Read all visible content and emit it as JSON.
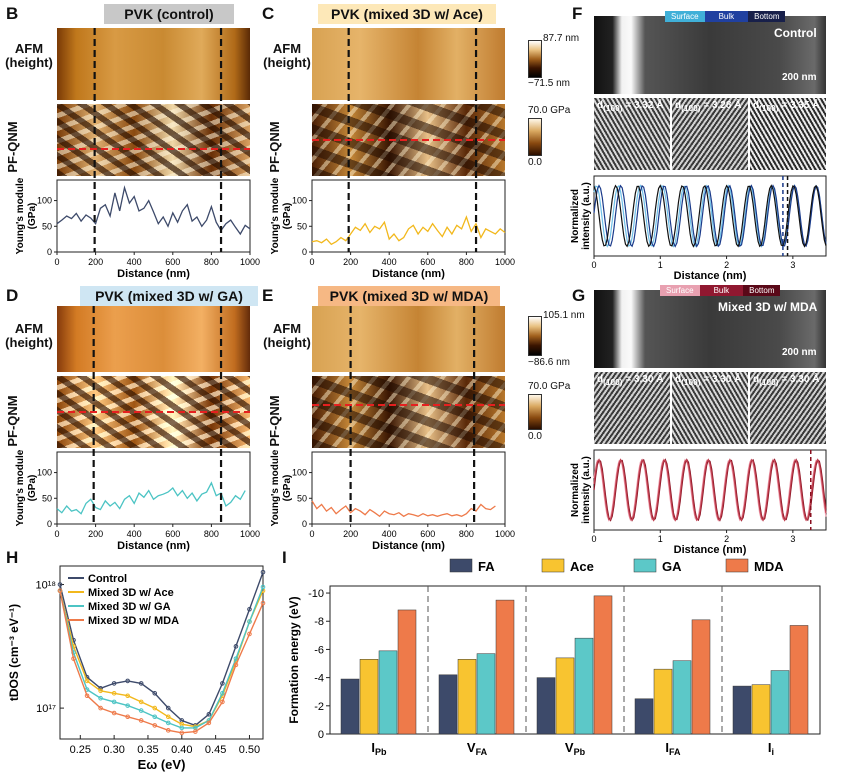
{
  "panels": {
    "B": {
      "letter": "B",
      "title": "PVK (control)",
      "title_bg": "#c8c8c8"
    },
    "C": {
      "letter": "C",
      "title": "PVK (mixed 3D w/ Ace)",
      "title_bg": "#fde8b8"
    },
    "D": {
      "letter": "D",
      "title": "PVK (mixed 3D w/ GA)",
      "title_bg": "#cfe6f3"
    },
    "E": {
      "letter": "E",
      "title": "PVK (mixed 3D w/ MDA)",
      "title_bg": "#f6b884"
    },
    "F": {
      "letter": "F",
      "tag": "Control",
      "scale": "200 nm"
    },
    "G": {
      "letter": "G",
      "tag": "Mixed 3D w/ MDA",
      "scale": "200 nm"
    },
    "H": {
      "letter": "H"
    },
    "I": {
      "letter": "I"
    }
  },
  "row_labels": {
    "afm_1": "AFM",
    "afm_2": "(height)",
    "pfqnm": "PF-QNM",
    "ym_1": "Young's module",
    "ym_2": "(GPa)"
  },
  "colorbars": {
    "afm_top": {
      "max": "87.7 nm",
      "min": "−71.5 nm"
    },
    "pf_top": {
      "max": "70.0 GPa",
      "min": "0.0"
    },
    "afm_bot": {
      "max": "105.1 nm",
      "min": "−86.6 nm"
    },
    "pf_bot": {
      "max": "70.0 GPa",
      "min": "0.0"
    }
  },
  "regions_F": [
    "Surface",
    "Bulk",
    "Bottom"
  ],
  "regions_G": [
    "Surface",
    "Bulk",
    "Bottom"
  ],
  "dspacing_F": [
    "3.32 Å",
    "3.28 Å",
    "3.35 Å"
  ],
  "dspacing_G": [
    "3.30 Å",
    "3.30 Å",
    "3.30 Å"
  ],
  "d_prefix": "d",
  "d_sub": "(100)",
  "d_eq": " = ",
  "colors": {
    "B": "#3d4a6a",
    "C": "#f2b81c",
    "D": "#4cc4c4",
    "E": "#ee7a4a",
    "red_dash": "#e52020",
    "F1": "#6ec0e8",
    "F2": "#1a3a8a",
    "F3": "#111111",
    "G1": "#f0a0b0",
    "G2": "#8a1020",
    "G3": "#c04050"
  },
  "chart_data": [
    {
      "type": "line",
      "panel": "B",
      "xlabel": "Distance (nm)",
      "ylabel": "Young's module (GPa)",
      "xlim": [
        0,
        1000
      ],
      "ylim": [
        0,
        140
      ],
      "x_ticks": [
        0,
        200,
        400,
        600,
        800,
        1000
      ],
      "y_ticks": [
        0,
        50,
        100
      ],
      "dashed_x": [
        195,
        850
      ],
      "series": [
        {
          "name": "control",
          "x": [
            0,
            25,
            50,
            75,
            100,
            125,
            150,
            175,
            200,
            225,
            250,
            275,
            300,
            325,
            350,
            375,
            400,
            425,
            450,
            475,
            500,
            525,
            550,
            575,
            600,
            625,
            650,
            675,
            700,
            725,
            750,
            775,
            800,
            825,
            850,
            875,
            900,
            925,
            950,
            975,
            1000
          ],
          "y": [
            55,
            62,
            70,
            65,
            75,
            60,
            72,
            66,
            55,
            85,
            92,
            70,
            115,
            80,
            125,
            95,
            108,
            80,
            85,
            100,
            78,
            55,
            68,
            50,
            76,
            58,
            80,
            92,
            60,
            68,
            50,
            62,
            88,
            58,
            42,
            55,
            62,
            48,
            35,
            52,
            45
          ]
        }
      ]
    },
    {
      "type": "line",
      "panel": "C",
      "xlabel": "Distance (nm)",
      "ylabel": "Young's module (GPa)",
      "xlim": [
        0,
        1000
      ],
      "ylim": [
        0,
        140
      ],
      "x_ticks": [
        0,
        200,
        400,
        600,
        800,
        1000
      ],
      "y_ticks": [
        0,
        50,
        100
      ],
      "dashed_x": [
        190,
        850
      ],
      "series": [
        {
          "name": "Ace",
          "x": [
            0,
            25,
            50,
            75,
            100,
            125,
            150,
            175,
            200,
            225,
            250,
            275,
            300,
            325,
            350,
            375,
            400,
            425,
            450,
            475,
            500,
            525,
            550,
            575,
            600,
            625,
            650,
            675,
            700,
            725,
            750,
            775,
            800,
            825,
            850,
            875,
            900,
            925,
            950,
            975,
            1000
          ],
          "y": [
            20,
            22,
            18,
            25,
            15,
            20,
            28,
            22,
            35,
            48,
            42,
            55,
            38,
            50,
            45,
            58,
            25,
            35,
            22,
            28,
            45,
            52,
            35,
            48,
            40,
            55,
            42,
            30,
            48,
            35,
            52,
            45,
            68,
            40,
            55,
            28,
            45,
            40,
            35,
            45,
            38
          ]
        }
      ]
    },
    {
      "type": "line",
      "panel": "D",
      "xlabel": "Distance (nm)",
      "ylabel": "Young's module (GPa)",
      "xlim": [
        0,
        1000
      ],
      "ylim": [
        0,
        140
      ],
      "x_ticks": [
        0,
        200,
        400,
        600,
        800,
        1000
      ],
      "y_ticks": [
        0,
        50,
        100
      ],
      "dashed_x": [
        190,
        850
      ],
      "series": [
        {
          "name": "GA",
          "x": [
            0,
            25,
            50,
            75,
            100,
            125,
            150,
            175,
            200,
            225,
            250,
            275,
            300,
            325,
            350,
            375,
            400,
            425,
            450,
            475,
            500,
            525,
            550,
            575,
            600,
            625,
            650,
            675,
            700,
            725,
            750,
            775,
            800,
            825,
            850,
            875,
            900,
            925,
            950,
            975
          ],
          "y": [
            30,
            22,
            35,
            25,
            28,
            20,
            40,
            48,
            32,
            28,
            45,
            35,
            42,
            30,
            48,
            55,
            40,
            60,
            52,
            65,
            48,
            55,
            58,
            62,
            70,
            55,
            65,
            50,
            60,
            45,
            58,
            62,
            80,
            55,
            60,
            35,
            42,
            55,
            48,
            65
          ]
        }
      ]
    },
    {
      "type": "line",
      "panel": "E",
      "xlabel": "Distance (nm)",
      "ylabel": "Young's module (GPa)",
      "xlim": [
        0,
        1000
      ],
      "ylim": [
        0,
        140
      ],
      "x_ticks": [
        0,
        200,
        400,
        600,
        800,
        1000
      ],
      "y_ticks": [
        0,
        50,
        100
      ],
      "dashed_x": [
        200,
        840
      ],
      "series": [
        {
          "name": "MDA",
          "x": [
            0,
            25,
            50,
            75,
            100,
            125,
            150,
            175,
            200,
            225,
            250,
            275,
            300,
            325,
            350,
            375,
            400,
            425,
            450,
            475,
            500,
            525,
            550,
            575,
            600,
            625,
            650,
            675,
            700,
            725,
            750,
            775,
            800,
            825,
            850,
            875,
            900,
            925,
            950
          ],
          "y": [
            45,
            30,
            38,
            25,
            32,
            20,
            28,
            35,
            22,
            30,
            25,
            18,
            28,
            22,
            15,
            25,
            20,
            18,
            22,
            15,
            20,
            18,
            15,
            20,
            16,
            18,
            15,
            18,
            20,
            16,
            18,
            15,
            20,
            30,
            25,
            38,
            30,
            28,
            35
          ]
        }
      ]
    },
    {
      "type": "line",
      "panel": "F",
      "xlabel": "Distance (nm)",
      "ylabel": "Normalized intensity (a.u.)",
      "xlim": [
        0,
        3.5
      ],
      "ylim": [
        0,
        1
      ],
      "x_ticks": [
        0,
        1,
        2,
        3
      ],
      "dashed_x": [
        2.85,
        2.92
      ],
      "series": [
        {
          "name": "Surface",
          "period": 0.332
        },
        {
          "name": "Bulk",
          "period": 0.328
        },
        {
          "name": "Bottom",
          "period": 0.335
        }
      ]
    },
    {
      "type": "line",
      "panel": "G",
      "xlabel": "Distance (nm)",
      "ylabel": "Normalized intensity (a.u.)",
      "xlim": [
        0,
        3.5
      ],
      "ylim": [
        0,
        1
      ],
      "x_ticks": [
        0,
        1,
        2,
        3
      ],
      "dashed_x": [
        3.27
      ],
      "series": [
        {
          "name": "Surface",
          "period": 0.33
        },
        {
          "name": "Bulk",
          "period": 0.33
        },
        {
          "name": "Bottom",
          "period": 0.33
        }
      ]
    },
    {
      "type": "line",
      "panel": "H",
      "xlabel": "Eω (eV)",
      "ylabel": "tDOS (cm⁻³ eV⁻¹)",
      "xlim": [
        0.22,
        0.52
      ],
      "ylim_log10": [
        16.75,
        18.15
      ],
      "x_ticks": [
        0.25,
        0.3,
        0.35,
        0.4,
        0.45,
        0.5
      ],
      "y_ticks_log10": [
        17,
        18
      ],
      "series": [
        {
          "name": "Control",
          "color": "#3d4a6a",
          "x": [
            0.22,
            0.24,
            0.26,
            0.28,
            0.3,
            0.32,
            0.34,
            0.36,
            0.38,
            0.4,
            0.42,
            0.44,
            0.46,
            0.48,
            0.5,
            0.52
          ],
          "y": [
            18.0,
            17.55,
            17.25,
            17.16,
            17.2,
            17.22,
            17.2,
            17.12,
            17.0,
            16.9,
            16.86,
            16.95,
            17.2,
            17.5,
            17.8,
            18.1
          ]
        },
        {
          "name": "Mixed 3D w/ Ace",
          "color": "#f2b81c",
          "x": [
            0.22,
            0.24,
            0.26,
            0.28,
            0.3,
            0.32,
            0.34,
            0.36,
            0.38,
            0.4,
            0.42,
            0.44,
            0.46,
            0.48,
            0.5,
            0.52
          ],
          "y": [
            17.95,
            17.5,
            17.22,
            17.14,
            17.12,
            17.1,
            17.05,
            17.0,
            16.93,
            16.87,
            16.85,
            16.9,
            17.1,
            17.38,
            17.7,
            17.95
          ]
        },
        {
          "name": "Mixed 3D w/ GA",
          "color": "#4cc4c4",
          "x": [
            0.22,
            0.24,
            0.26,
            0.28,
            0.3,
            0.32,
            0.34,
            0.36,
            0.38,
            0.4,
            0.42,
            0.44,
            0.46,
            0.48,
            0.5,
            0.52
          ],
          "y": [
            17.95,
            17.45,
            17.15,
            17.08,
            17.05,
            17.02,
            16.98,
            16.93,
            16.88,
            16.84,
            16.84,
            16.9,
            17.12,
            17.4,
            17.7,
            17.98
          ]
        },
        {
          "name": "Mixed 3D w/ MDA",
          "color": "#ee7a4a",
          "x": [
            0.22,
            0.24,
            0.26,
            0.28,
            0.3,
            0.32,
            0.34,
            0.36,
            0.38,
            0.4,
            0.42,
            0.44,
            0.46,
            0.48,
            0.5,
            0.52
          ],
          "y": [
            17.95,
            17.4,
            17.1,
            17.0,
            16.96,
            16.93,
            16.9,
            16.86,
            16.82,
            16.8,
            16.81,
            16.88,
            17.05,
            17.35,
            17.6,
            17.85
          ]
        }
      ]
    },
    {
      "type": "bar",
      "panel": "I",
      "ylabel": "Formation energy (eV)",
      "ylim": [
        0,
        -10.5
      ],
      "y_ticks": [
        0,
        -2,
        -4,
        -6,
        -8,
        -10
      ],
      "categories": [
        "I",
        "V",
        "V",
        "I",
        "I"
      ],
      "category_subs": [
        "Pb",
        "FA",
        "Pb",
        "FA",
        "i"
      ],
      "legend": [
        "FA",
        "Ace",
        "GA",
        "MDA"
      ],
      "legend_colors": [
        "#3d4a6a",
        "#f8c430",
        "#5cc8c8",
        "#ee7a4a"
      ],
      "series": [
        {
          "name": "FA",
          "values": [
            -3.9,
            -4.2,
            -4.0,
            -2.5,
            -3.4
          ]
        },
        {
          "name": "Ace",
          "values": [
            -5.3,
            -5.3,
            -5.4,
            -4.6,
            -3.5
          ]
        },
        {
          "name": "GA",
          "values": [
            -5.9,
            -5.7,
            -6.8,
            -5.2,
            -4.5
          ]
        },
        {
          "name": "MDA",
          "values": [
            -8.8,
            -9.5,
            -9.8,
            -8.1,
            -7.7
          ]
        }
      ]
    }
  ]
}
